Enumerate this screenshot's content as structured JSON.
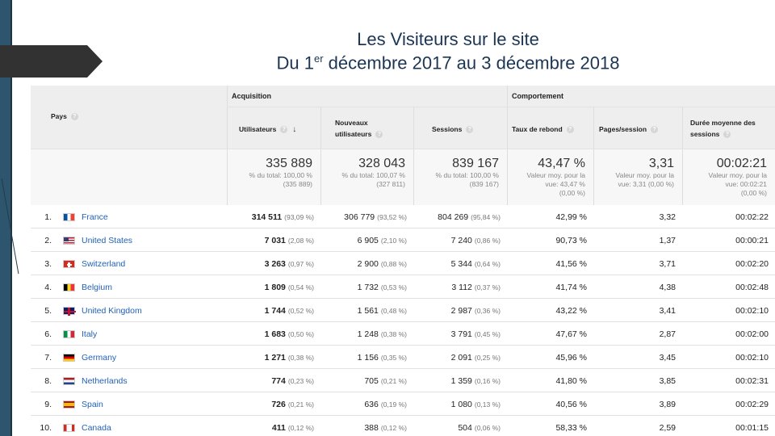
{
  "slide": {
    "title_line1": "Les Visiteurs sur le site",
    "title_line2_prefix": "Du 1",
    "title_line2_sup": "er",
    "title_line2_suffix": " décembre 2017 au 3 décembre 2018"
  },
  "report": {
    "group_acquisition": "Acquisition",
    "group_comportement": "Comportement",
    "col_pays": "Pays",
    "col_utilisateurs": "Utilisateurs",
    "col_nouveaux_1": "Nouveaux",
    "col_nouveaux_2": "utilisateurs",
    "col_sessions": "Sessions",
    "col_rebond": "Taux de rebond",
    "col_pages": "Pages/session",
    "col_duree_1": "Durée moyenne des",
    "col_duree_2": "sessions",
    "help_icon": "?",
    "sort_icon": "↓"
  },
  "totals": {
    "utilisateurs": "335 889",
    "utilisateurs_l1": "% du total: 100,00 %",
    "utilisateurs_l2": "(335 889)",
    "nouveaux": "328 043",
    "nouveaux_l1": "% du total: 100,07 %",
    "nouveaux_l2": "(327 811)",
    "sessions": "839 167",
    "sessions_l1": "% du total: 100,00 %",
    "sessions_l2": "(839 167)",
    "rebond": "43,47 %",
    "rebond_l1": "Valeur moy. pour la",
    "rebond_l2": "vue: 43,47 %",
    "rebond_l3": "(0,00 %)",
    "pages": "3,31",
    "pages_l1": "Valeur moy. pour la",
    "pages_l2": "vue: 3,31 (0,00 %)",
    "duree": "00:02:21",
    "duree_l1": "Valeur moy. pour la",
    "duree_l2": "vue: 00:02:21",
    "duree_l3": "(0,00 %)"
  },
  "rows": [
    {
      "idx": "1.",
      "country": "France",
      "flag": "fr",
      "users": "314 511",
      "users_pct": "(93,09 %)",
      "new": "306 779",
      "new_pct": "(93,52 %)",
      "sessions": "804 269",
      "sessions_pct": "(95,84 %)",
      "bounce": "42,99 %",
      "pages": "3,32",
      "duration": "00:02:22"
    },
    {
      "idx": "2.",
      "country": "United States",
      "flag": "us",
      "users": "7 031",
      "users_pct": "(2,08 %)",
      "new": "6 905",
      "new_pct": "(2,10 %)",
      "sessions": "7 240",
      "sessions_pct": "(0,86 %)",
      "bounce": "90,73 %",
      "pages": "1,37",
      "duration": "00:00:21"
    },
    {
      "idx": "3.",
      "country": "Switzerland",
      "flag": "ch",
      "users": "3 263",
      "users_pct": "(0,97 %)",
      "new": "2 900",
      "new_pct": "(0,88 %)",
      "sessions": "5 344",
      "sessions_pct": "(0,64 %)",
      "bounce": "41,56 %",
      "pages": "3,71",
      "duration": "00:02:20"
    },
    {
      "idx": "4.",
      "country": "Belgium",
      "flag": "be",
      "users": "1 809",
      "users_pct": "(0,54 %)",
      "new": "1 732",
      "new_pct": "(0,53 %)",
      "sessions": "3 112",
      "sessions_pct": "(0,37 %)",
      "bounce": "41,74 %",
      "pages": "4,38",
      "duration": "00:02:48"
    },
    {
      "idx": "5.",
      "country": "United Kingdom",
      "flag": "gb",
      "users": "1 744",
      "users_pct": "(0,52 %)",
      "new": "1 561",
      "new_pct": "(0,48 %)",
      "sessions": "2 987",
      "sessions_pct": "(0,36 %)",
      "bounce": "43,22 %",
      "pages": "3,41",
      "duration": "00:02:10"
    },
    {
      "idx": "6.",
      "country": "Italy",
      "flag": "it",
      "users": "1 683",
      "users_pct": "(0,50 %)",
      "new": "1 248",
      "new_pct": "(0,38 %)",
      "sessions": "3 791",
      "sessions_pct": "(0,45 %)",
      "bounce": "47,67 %",
      "pages": "2,87",
      "duration": "00:02:00"
    },
    {
      "idx": "7.",
      "country": "Germany",
      "flag": "de",
      "users": "1 271",
      "users_pct": "(0,38 %)",
      "new": "1 156",
      "new_pct": "(0,35 %)",
      "sessions": "2 091",
      "sessions_pct": "(0,25 %)",
      "bounce": "45,96 %",
      "pages": "3,45",
      "duration": "00:02:10"
    },
    {
      "idx": "8.",
      "country": "Netherlands",
      "flag": "nl",
      "users": "774",
      "users_pct": "(0,23 %)",
      "new": "705",
      "new_pct": "(0,21 %)",
      "sessions": "1 359",
      "sessions_pct": "(0,16 %)",
      "bounce": "41,80 %",
      "pages": "3,85",
      "duration": "00:02:31"
    },
    {
      "idx": "9.",
      "country": "Spain",
      "flag": "es",
      "users": "726",
      "users_pct": "(0,21 %)",
      "new": "636",
      "new_pct": "(0,19 %)",
      "sessions": "1 080",
      "sessions_pct": "(0,13 %)",
      "bounce": "40,56 %",
      "pages": "3,89",
      "duration": "00:02:29"
    },
    {
      "idx": "10.",
      "country": "Canada",
      "flag": "ca",
      "users": "411",
      "users_pct": "(0,12 %)",
      "new": "388",
      "new_pct": "(0,12 %)",
      "sessions": "504",
      "sessions_pct": "(0,06 %)",
      "bounce": "58,33 %",
      "pages": "2,59",
      "duration": "00:01:15"
    }
  ],
  "colors": {
    "accent": "#2d566e",
    "link": "#2262b8",
    "title": "#1b3554"
  }
}
